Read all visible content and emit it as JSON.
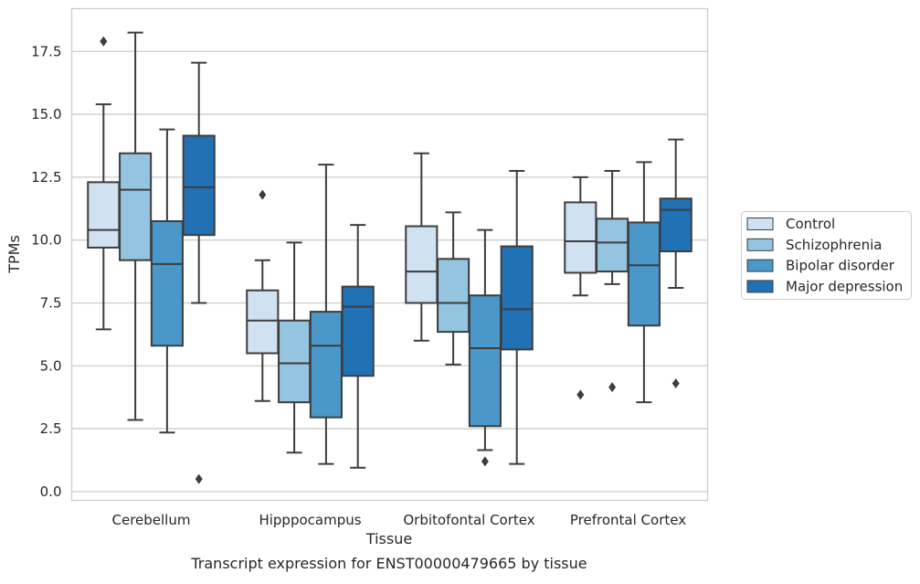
{
  "chart_data": {
    "type": "box",
    "caption": "Transcript expression for ENST00000479665 by tissue",
    "xlabel": "Tissue",
    "ylabel": "TPMs",
    "ylim": [
      -0.35,
      19.2
    ],
    "yticks": [
      "0.0",
      "2.5",
      "5.0",
      "7.5",
      "10.0",
      "12.5",
      "15.0",
      "17.5"
    ],
    "ytick_values": [
      0,
      2.5,
      5.0,
      7.5,
      10.0,
      12.5,
      15.0,
      17.5
    ],
    "grid": "horizontal",
    "legend_position": "right",
    "categories": [
      "Cerebellum",
      "Hipppocampus",
      "Orbitofontal Cortex",
      "Prefrontal Cortex"
    ],
    "series": [
      {
        "name": "Control",
        "color": "#d0e1f2",
        "boxes": [
          {
            "whislo": 6.45,
            "q1": 9.7,
            "med": 10.4,
            "q3": 12.3,
            "whishi": 15.4,
            "fliers": [
              17.9
            ]
          },
          {
            "whislo": 3.6,
            "q1": 5.5,
            "med": 6.8,
            "q3": 8.0,
            "whishi": 9.2,
            "fliers": [
              11.8
            ]
          },
          {
            "whislo": 6.0,
            "q1": 7.5,
            "med": 8.75,
            "q3": 10.55,
            "whishi": 13.45,
            "fliers": []
          },
          {
            "whislo": 7.8,
            "q1": 8.7,
            "med": 9.95,
            "q3": 11.5,
            "whishi": 12.5,
            "fliers": [
              3.85
            ]
          }
        ]
      },
      {
        "name": "Schizophrenia",
        "color": "#94c4df",
        "boxes": [
          {
            "whislo": 2.85,
            "q1": 9.2,
            "med": 12.0,
            "q3": 13.45,
            "whishi": 18.25,
            "fliers": []
          },
          {
            "whislo": 1.55,
            "q1": 3.55,
            "med": 5.1,
            "q3": 6.8,
            "whishi": 9.9,
            "fliers": []
          },
          {
            "whislo": 5.05,
            "q1": 6.35,
            "med": 7.5,
            "q3": 9.25,
            "whishi": 11.1,
            "fliers": []
          },
          {
            "whislo": 8.25,
            "q1": 8.75,
            "med": 9.9,
            "q3": 10.85,
            "whishi": 12.75,
            "fliers": [
              4.15
            ]
          }
        ]
      },
      {
        "name": "Bipolar disorder",
        "color": "#4a98c9",
        "boxes": [
          {
            "whislo": 2.35,
            "q1": 5.8,
            "med": 9.05,
            "q3": 10.75,
            "whishi": 14.4,
            "fliers": []
          },
          {
            "whislo": 1.1,
            "q1": 2.95,
            "med": 5.8,
            "q3": 7.15,
            "whishi": 13.0,
            "fliers": []
          },
          {
            "whislo": 1.65,
            "q1": 2.6,
            "med": 5.7,
            "q3": 7.8,
            "whishi": 10.4,
            "fliers": [
              1.2
            ]
          },
          {
            "whislo": 3.55,
            "q1": 6.6,
            "med": 9.0,
            "q3": 10.7,
            "whishi": 13.1,
            "fliers": []
          }
        ]
      },
      {
        "name": "Major depression",
        "color": "#2171b5",
        "boxes": [
          {
            "whislo": 7.5,
            "q1": 10.2,
            "med": 12.1,
            "q3": 14.15,
            "whishi": 17.05,
            "fliers": [
              0.5
            ]
          },
          {
            "whislo": 0.95,
            "q1": 4.6,
            "med": 7.35,
            "q3": 8.15,
            "whishi": 10.6,
            "fliers": []
          },
          {
            "whislo": 1.1,
            "q1": 5.65,
            "med": 7.25,
            "q3": 9.75,
            "whishi": 12.75,
            "fliers": []
          },
          {
            "whislo": 8.1,
            "q1": 9.55,
            "med": 11.2,
            "q3": 11.65,
            "whishi": 14.0,
            "fliers": [
              4.3
            ]
          }
        ]
      }
    ]
  }
}
